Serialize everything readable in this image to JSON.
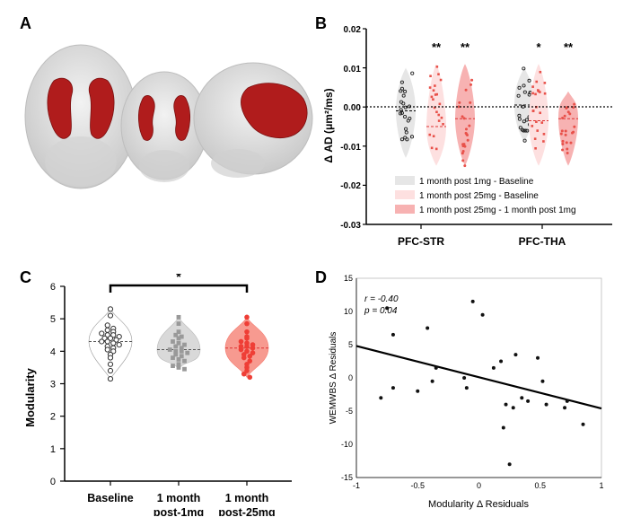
{
  "panels": {
    "A": {
      "letter": "A"
    },
    "B": {
      "letter": "B"
    },
    "C": {
      "letter": "C"
    },
    "D": {
      "letter": "D"
    }
  },
  "colors": {
    "mri_red": "#b01c1c",
    "brain_gray": "#dcdcdc",
    "gray_violin": "#e6e6e6",
    "pink_light": "#fde0e0",
    "pink_med": "#f7b2b2",
    "red_point": "#e8514a",
    "c_salmon": "#f79a90"
  },
  "chart_data": [
    {
      "id": "B",
      "type": "violin",
      "ylabel": "Δ AD (μm²/ms)",
      "ylim": [
        -0.03,
        0.02
      ],
      "yticks": [
        "0.02",
        "0.01",
        "0.00",
        "-0.01",
        "-0.02",
        "-0.03"
      ],
      "categories": [
        "PFC-STR",
        "PFC-THA"
      ],
      "series": [
        {
          "name": "1 month post 1mg - Baseline",
          "medians": [
            -0.001,
            0.0005
          ],
          "range": [
            [
              -0.013,
              0.01
            ],
            [
              -0.009,
              0.01
            ]
          ],
          "significance": [
            "",
            ""
          ]
        },
        {
          "name": "1 month post 25mg - Baseline",
          "medians": [
            -0.005,
            -0.0035
          ],
          "range": [
            [
              -0.015,
              0.011
            ],
            [
              -0.015,
              0.011
            ]
          ],
          "significance": [
            "**",
            "*"
          ]
        },
        {
          "name": "1 month post 25mg - 1 month post 1mg",
          "medians": [
            -0.003,
            -0.003
          ],
          "range": [
            [
              -0.015,
              0.011
            ],
            [
              -0.015,
              0.004
            ]
          ],
          "significance": [
            "**",
            "**"
          ]
        }
      ],
      "reference_line": 0.0
    },
    {
      "id": "C",
      "type": "violin",
      "ylabel": "Modularity",
      "ylim": [
        0,
        6
      ],
      "yticks": [
        "0",
        "1",
        "2",
        "3",
        "4",
        "5",
        "6"
      ],
      "categories": [
        {
          "line1": "Baseline",
          "line2": ""
        },
        {
          "line1": "1 month",
          "line2": "post-1mg"
        },
        {
          "line1": "1 month",
          "line2": "post-25mg"
        }
      ],
      "values": [
        [
          5.3,
          5.1,
          4.8,
          4.7,
          4.65,
          4.6,
          4.55,
          4.5,
          4.5,
          4.45,
          4.4,
          4.4,
          4.35,
          4.3,
          4.3,
          4.25,
          4.2,
          4.15,
          4.1,
          4.05,
          4.0,
          3.9,
          3.8,
          3.6,
          3.4,
          3.15
        ],
        [
          5.05,
          4.85,
          4.6,
          4.5,
          4.45,
          4.4,
          4.3,
          4.25,
          4.2,
          4.15,
          4.1,
          4.05,
          4.0,
          4.0,
          3.95,
          3.9,
          3.85,
          3.8,
          3.75,
          3.7,
          3.6,
          3.55,
          3.5,
          3.45
        ],
        [
          5.05,
          4.85,
          4.6,
          4.45,
          4.4,
          4.3,
          4.25,
          4.2,
          4.15,
          4.15,
          4.1,
          4.05,
          4.0,
          3.95,
          3.9,
          3.85,
          3.8,
          3.7,
          3.6,
          3.5,
          3.4,
          3.3,
          3.2
        ]
      ],
      "medians": [
        4.3,
        4.05,
        4.1
      ],
      "significance": {
        "from": 0,
        "to": 2,
        "label": "*"
      }
    },
    {
      "id": "D",
      "type": "scatter",
      "xlabel": "Modularity Δ Residuals",
      "ylabel": "WEMWBS Δ Residuals",
      "xlim": [
        -1,
        1
      ],
      "ylim": [
        -15,
        15
      ],
      "xticks": [
        "-1",
        "-0.5",
        "0",
        "0.5",
        "1"
      ],
      "yticks": [
        "15",
        "10",
        "5",
        "0",
        "-5",
        "-10",
        "-15"
      ],
      "annotation": {
        "r": "r = -0.40",
        "p": "p = 0.04"
      },
      "x": [
        -0.75,
        -0.7,
        -0.8,
        -0.7,
        -0.42,
        -0.38,
        -0.35,
        -0.12,
        -0.05,
        0.03,
        0.12,
        0.18,
        0.22,
        0.25,
        0.28,
        0.3,
        0.35,
        0.4,
        0.48,
        0.52,
        0.55,
        0.7,
        0.72,
        0.85,
        -0.1,
        -0.5,
        0.2
      ],
      "y": [
        10.5,
        6.5,
        -3,
        -1.5,
        7.5,
        -0.5,
        1.5,
        0,
        11.5,
        9.5,
        1.5,
        2.5,
        -4,
        -13,
        -4.5,
        3.5,
        -3,
        -3.5,
        3,
        -0.5,
        -4,
        -4.5,
        -3.5,
        -7,
        -1.5,
        -2,
        -7.5
      ],
      "fit": {
        "x": [
          -1,
          1
        ],
        "y": [
          4.8,
          -4.6
        ]
      }
    }
  ]
}
